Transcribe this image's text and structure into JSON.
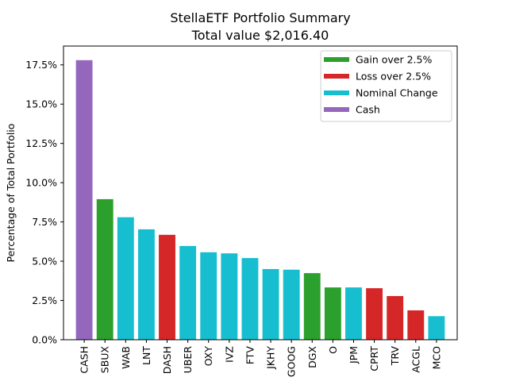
{
  "chart_data": {
    "type": "bar",
    "title": "StellaETF Portfolio Summary",
    "subtitle": "Total value $2,016.40",
    "xlabel": "",
    "ylabel": "Percentage of Total Portfolio",
    "ylim": [
      0,
      18.7
    ],
    "yticks": [
      "0.0%",
      "2.5%",
      "5.0%",
      "7.5%",
      "10.0%",
      "12.5%",
      "15.0%",
      "17.5%"
    ],
    "ytick_values": [
      0,
      2.5,
      5.0,
      7.5,
      10.0,
      12.5,
      15.0,
      17.5
    ],
    "grid": false,
    "legend_position": "top-right",
    "legend": [
      {
        "key": "gain",
        "label": "Gain over 2.5%",
        "color": "#2ca02c"
      },
      {
        "key": "loss",
        "label": "Loss over 2.5%",
        "color": "#d62728"
      },
      {
        "key": "nominal",
        "label": "Nominal Change",
        "color": "#17becf"
      },
      {
        "key": "cash",
        "label": "Cash",
        "color": "#9467bd"
      }
    ],
    "categories": [
      "CASH",
      "SBUX",
      "WAB",
      "LNT",
      "DASH",
      "UBER",
      "OXY",
      "IVZ",
      "FTV",
      "JKHY",
      "GOOG",
      "DGX",
      "O",
      "JPM",
      "CPRT",
      "TRV",
      "ACGL",
      "MCO"
    ],
    "values": [
      17.8,
      8.95,
      7.8,
      7.03,
      6.68,
      5.97,
      5.57,
      5.5,
      5.2,
      4.5,
      4.46,
      4.24,
      3.33,
      3.33,
      3.28,
      2.78,
      1.87,
      1.5
    ],
    "groups": [
      "cash",
      "gain",
      "nominal",
      "nominal",
      "loss",
      "nominal",
      "nominal",
      "nominal",
      "nominal",
      "nominal",
      "nominal",
      "gain",
      "gain",
      "nominal",
      "loss",
      "loss",
      "loss",
      "nominal"
    ]
  }
}
